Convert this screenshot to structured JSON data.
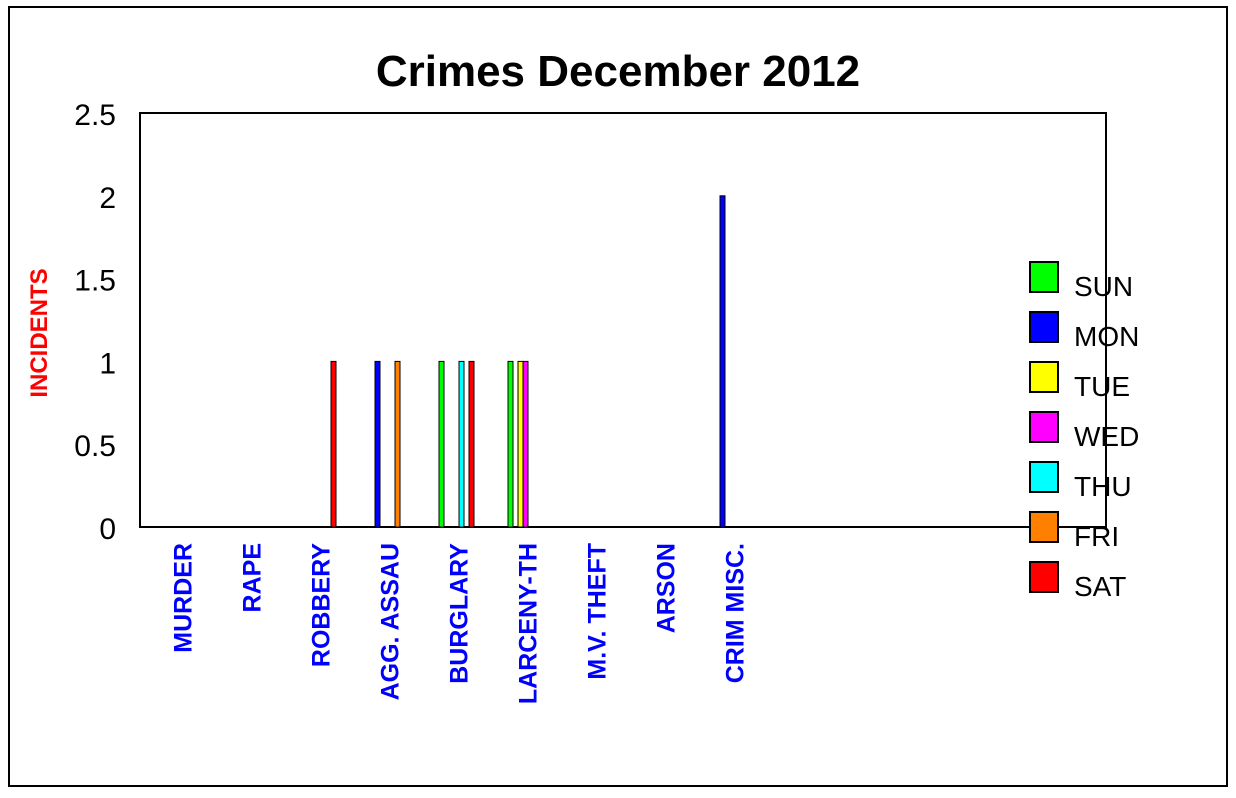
{
  "chart_data": {
    "type": "bar",
    "title": "Crimes December 2012",
    "xlabel": "",
    "ylabel": "INCIDENTS",
    "ylim": [
      0,
      2.5
    ],
    "yticks": [
      "0",
      "0.5",
      "1",
      "1.5",
      "2",
      "2.5"
    ],
    "ytick_values": [
      0,
      0.5,
      1,
      1.5,
      2,
      2.5
    ],
    "grid": false,
    "legend_position": "right",
    "categories": [
      "MURDER",
      "RAPE",
      "ROBBERY",
      "AGG. ASSAU",
      "BURGLARY",
      "LARCENY-TH",
      "M.V. THEFT",
      "ARSON",
      "CRIM MISC."
    ],
    "series": [
      {
        "name": "SUN",
        "color": "#00ff00",
        "values": [
          0,
          0,
          0,
          0,
          1,
          1,
          0,
          0,
          0
        ]
      },
      {
        "name": "MON",
        "color": "#0000ff",
        "values": [
          0,
          0,
          0,
          1,
          0,
          0,
          0,
          0,
          2
        ]
      },
      {
        "name": "TUE",
        "color": "#ffff00",
        "values": [
          0,
          0,
          0,
          0,
          0,
          1,
          0,
          0,
          0
        ]
      },
      {
        "name": "WED",
        "color": "#ff00ff",
        "values": [
          0,
          0,
          0,
          0,
          0,
          1,
          0,
          0,
          0
        ]
      },
      {
        "name": "THU",
        "color": "#00ffff",
        "values": [
          0,
          0,
          0,
          0,
          1,
          0,
          0,
          0,
          0
        ]
      },
      {
        "name": "FRI",
        "color": "#ff8000",
        "values": [
          0,
          0,
          0,
          1,
          0,
          0,
          0,
          0,
          0
        ]
      },
      {
        "name": "SAT",
        "color": "#ff0000",
        "values": [
          0,
          0,
          1,
          0,
          1,
          0,
          0,
          0,
          0
        ]
      }
    ]
  },
  "colors": {
    "category_label": "#0000ff",
    "ylabel": "#ff0000",
    "title": "#000000"
  }
}
